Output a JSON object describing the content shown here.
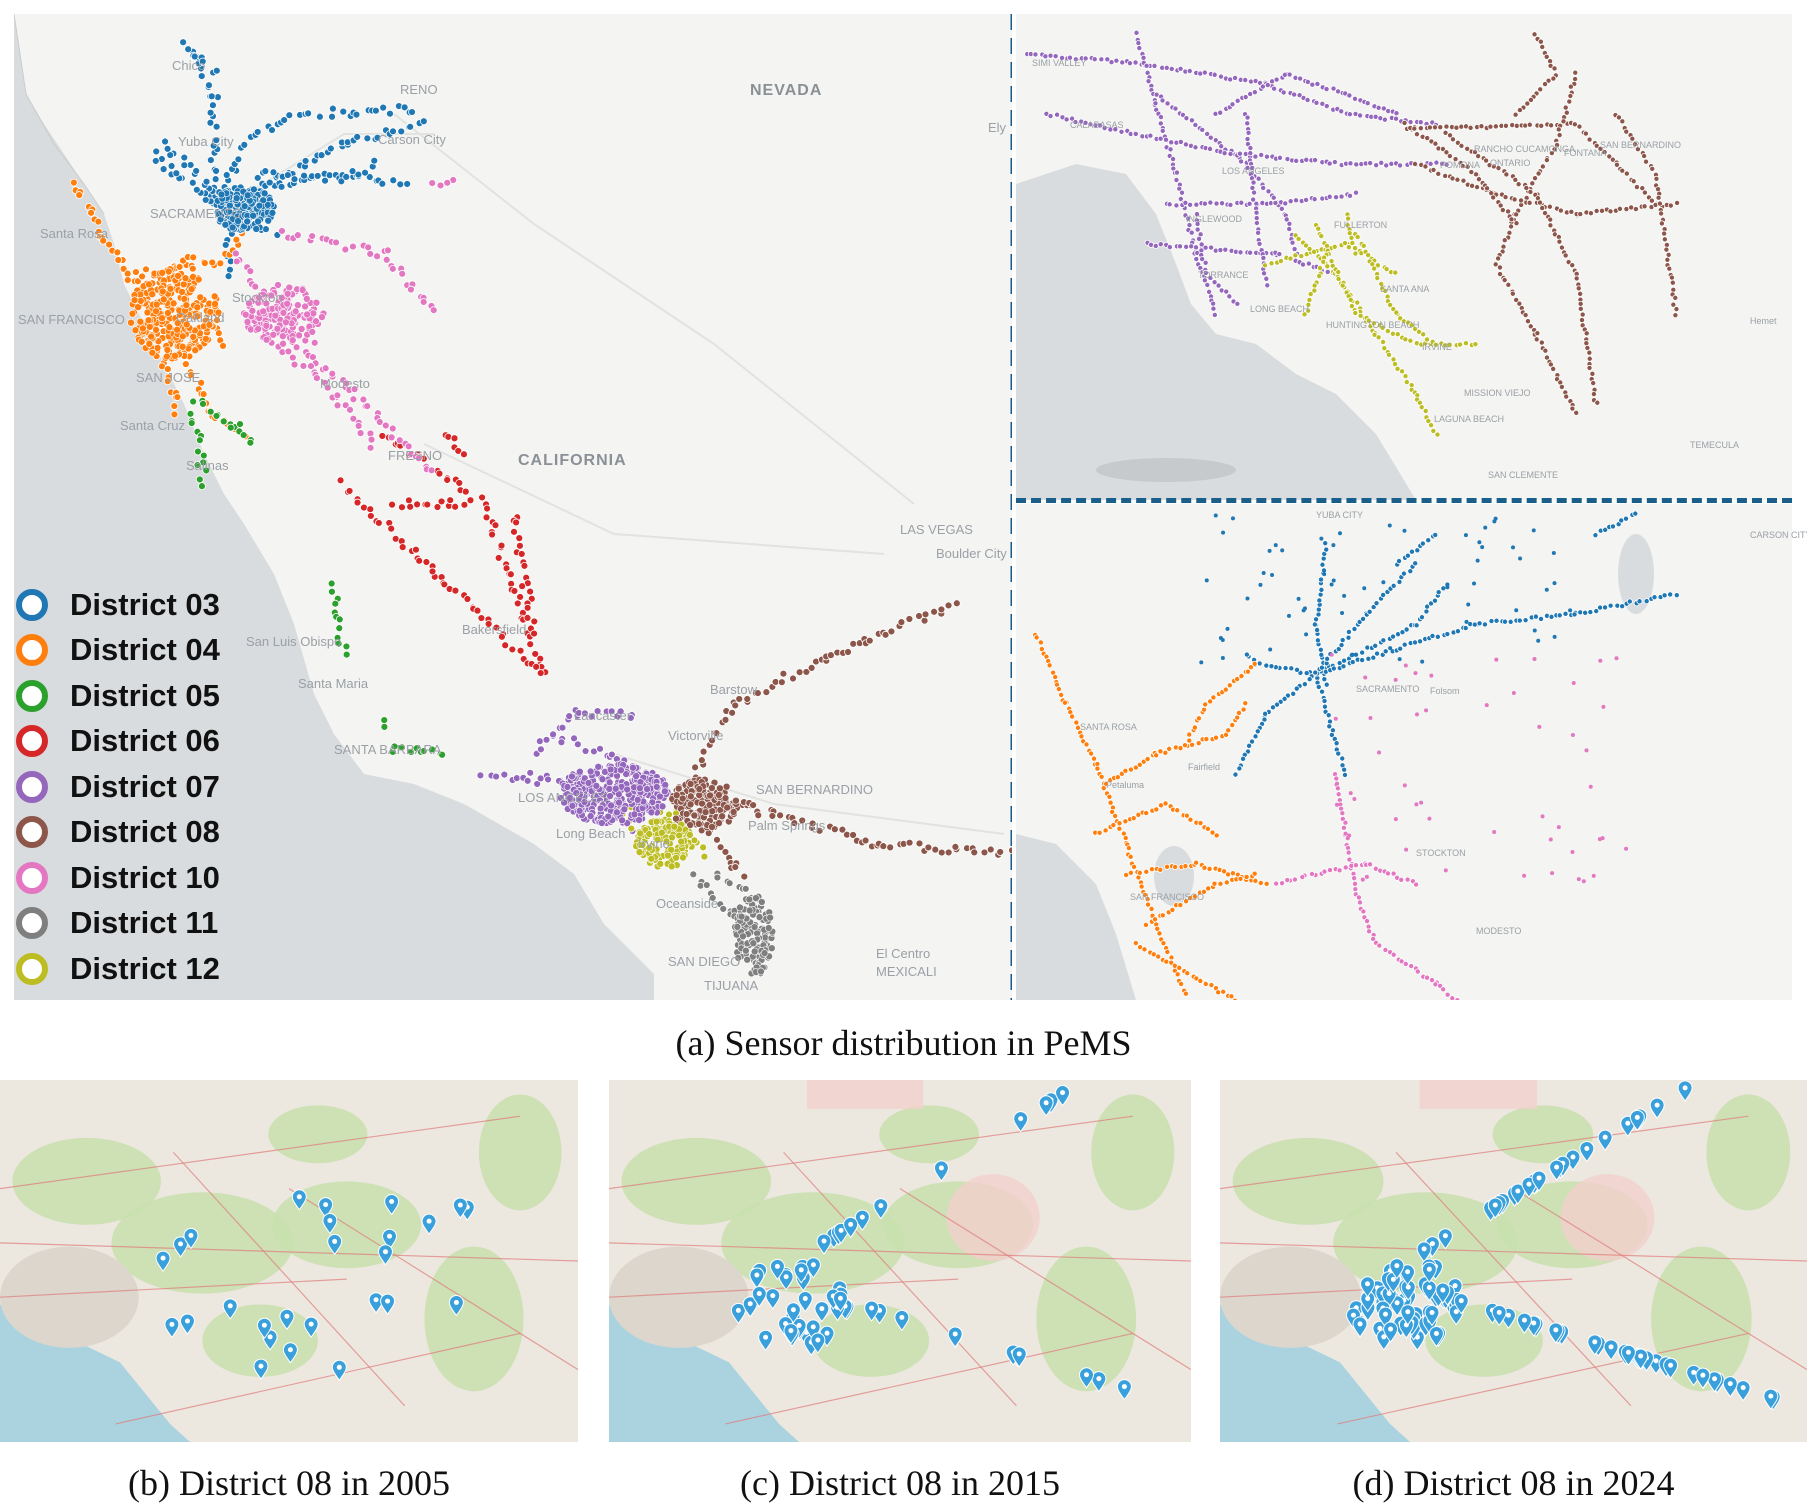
{
  "main_map": {
    "labels": {
      "chico": "Chico",
      "reno": "RENO",
      "nevada": "NEVADA",
      "ely": "Ely",
      "carson_city": "Carson City",
      "yuba_city": "Yuba City",
      "sacramento": "SACRAMENTO",
      "santa_rosa": "Santa Rosa",
      "san_francisco": "SAN FRANCISCO",
      "oakland": "Oakland",
      "stockton": "Stockton",
      "san_jose": "SAN JOSE",
      "modesto": "Modesto",
      "santa_cruz": "Santa Cruz",
      "salinas": "Salinas",
      "fresno": "FRESNO",
      "california": "CALIFORNIA",
      "las_vegas": "LAS VEGAS",
      "boulder_city": "Boulder City",
      "bakersfield": "Bakersfield",
      "san_luis_obispo": "San Luis Obispo",
      "santa_maria": "Santa Maria",
      "lancaster": "Lancaster",
      "barstow": "Barstow",
      "victorville": "Victorville",
      "santa_barbara": "SANTA BARBARA",
      "los_angeles": "LOS ANGELES",
      "san_bernardino": "SAN BERNARDINO",
      "palm_springs": "Palm Springs",
      "long_beach": "Long Beach",
      "irvine": "Irvine",
      "oceanside": "Oceanside",
      "el_centro": "El Centro",
      "mexicali": "MEXICALI",
      "san_diego": "SAN DIEGO",
      "tijuana": "TIJUANA"
    },
    "legend": [
      {
        "label": "District 03",
        "color": "#1f77b4"
      },
      {
        "label": "District 04",
        "color": "#ff7f0e"
      },
      {
        "label": "District 05",
        "color": "#2ca02c"
      },
      {
        "label": "District 06",
        "color": "#d62728"
      },
      {
        "label": "District 07",
        "color": "#9467bd"
      },
      {
        "label": "District 08",
        "color": "#8c564b"
      },
      {
        "label": "District 10",
        "color": "#e377c2"
      },
      {
        "label": "District 11",
        "color": "#7f7f7f"
      },
      {
        "label": "District 12",
        "color": "#bcbd22"
      }
    ]
  },
  "inset_top_labels": {
    "simi_valley": "SIMI VALLEY",
    "calabasas": "CALABASAS",
    "los_angeles": "LOS ANGELES",
    "inglewood": "INGLEWOOD",
    "torrance": "TORRANCE",
    "long_beach": "LONG BEACH",
    "fullerton": "FULLERTON",
    "pomona": "POMONA",
    "ontario": "ONTARIO",
    "fontana": "FONTANA",
    "rancho": "RANCHO CUCAMONGA",
    "san_bernardino": "SAN BERNARDINO",
    "santa_ana": "SANTA ANA",
    "huntington": "HUNTINGTON BEACH",
    "irvine": "IRVINE",
    "mission_viejo": "MISSION VIEJO",
    "laguna": "LAGUNA BEACH",
    "san_clemente": "SAN CLEMENTE",
    "temecula": "TEMECULA",
    "hemet": "Hemet"
  },
  "inset_bottom_labels": {
    "yuba_city": "YUBA CITY",
    "carson_city": "CARSON CITY",
    "santa_rosa": "SANTA ROSA",
    "sacramento": "SACRAMENTO",
    "san_francisco": "SAN FRANCISCO",
    "stockton": "STOCKTON",
    "modesto": "MODESTO",
    "folsom": "Folsom",
    "petaluma": "Petaluma",
    "fairfield": "Fairfield"
  },
  "sub_maps": [
    {
      "id": "b",
      "pins": 26
    },
    {
      "id": "c",
      "pins": 60
    },
    {
      "id": "d",
      "pins": 120
    }
  ],
  "captions": {
    "a": "(a) Sensor distribution in PeMS",
    "b": "(b) District 08 in 2005",
    "c": "(c) District 08 in 2015",
    "d": "(d) District 08 in 2024"
  }
}
